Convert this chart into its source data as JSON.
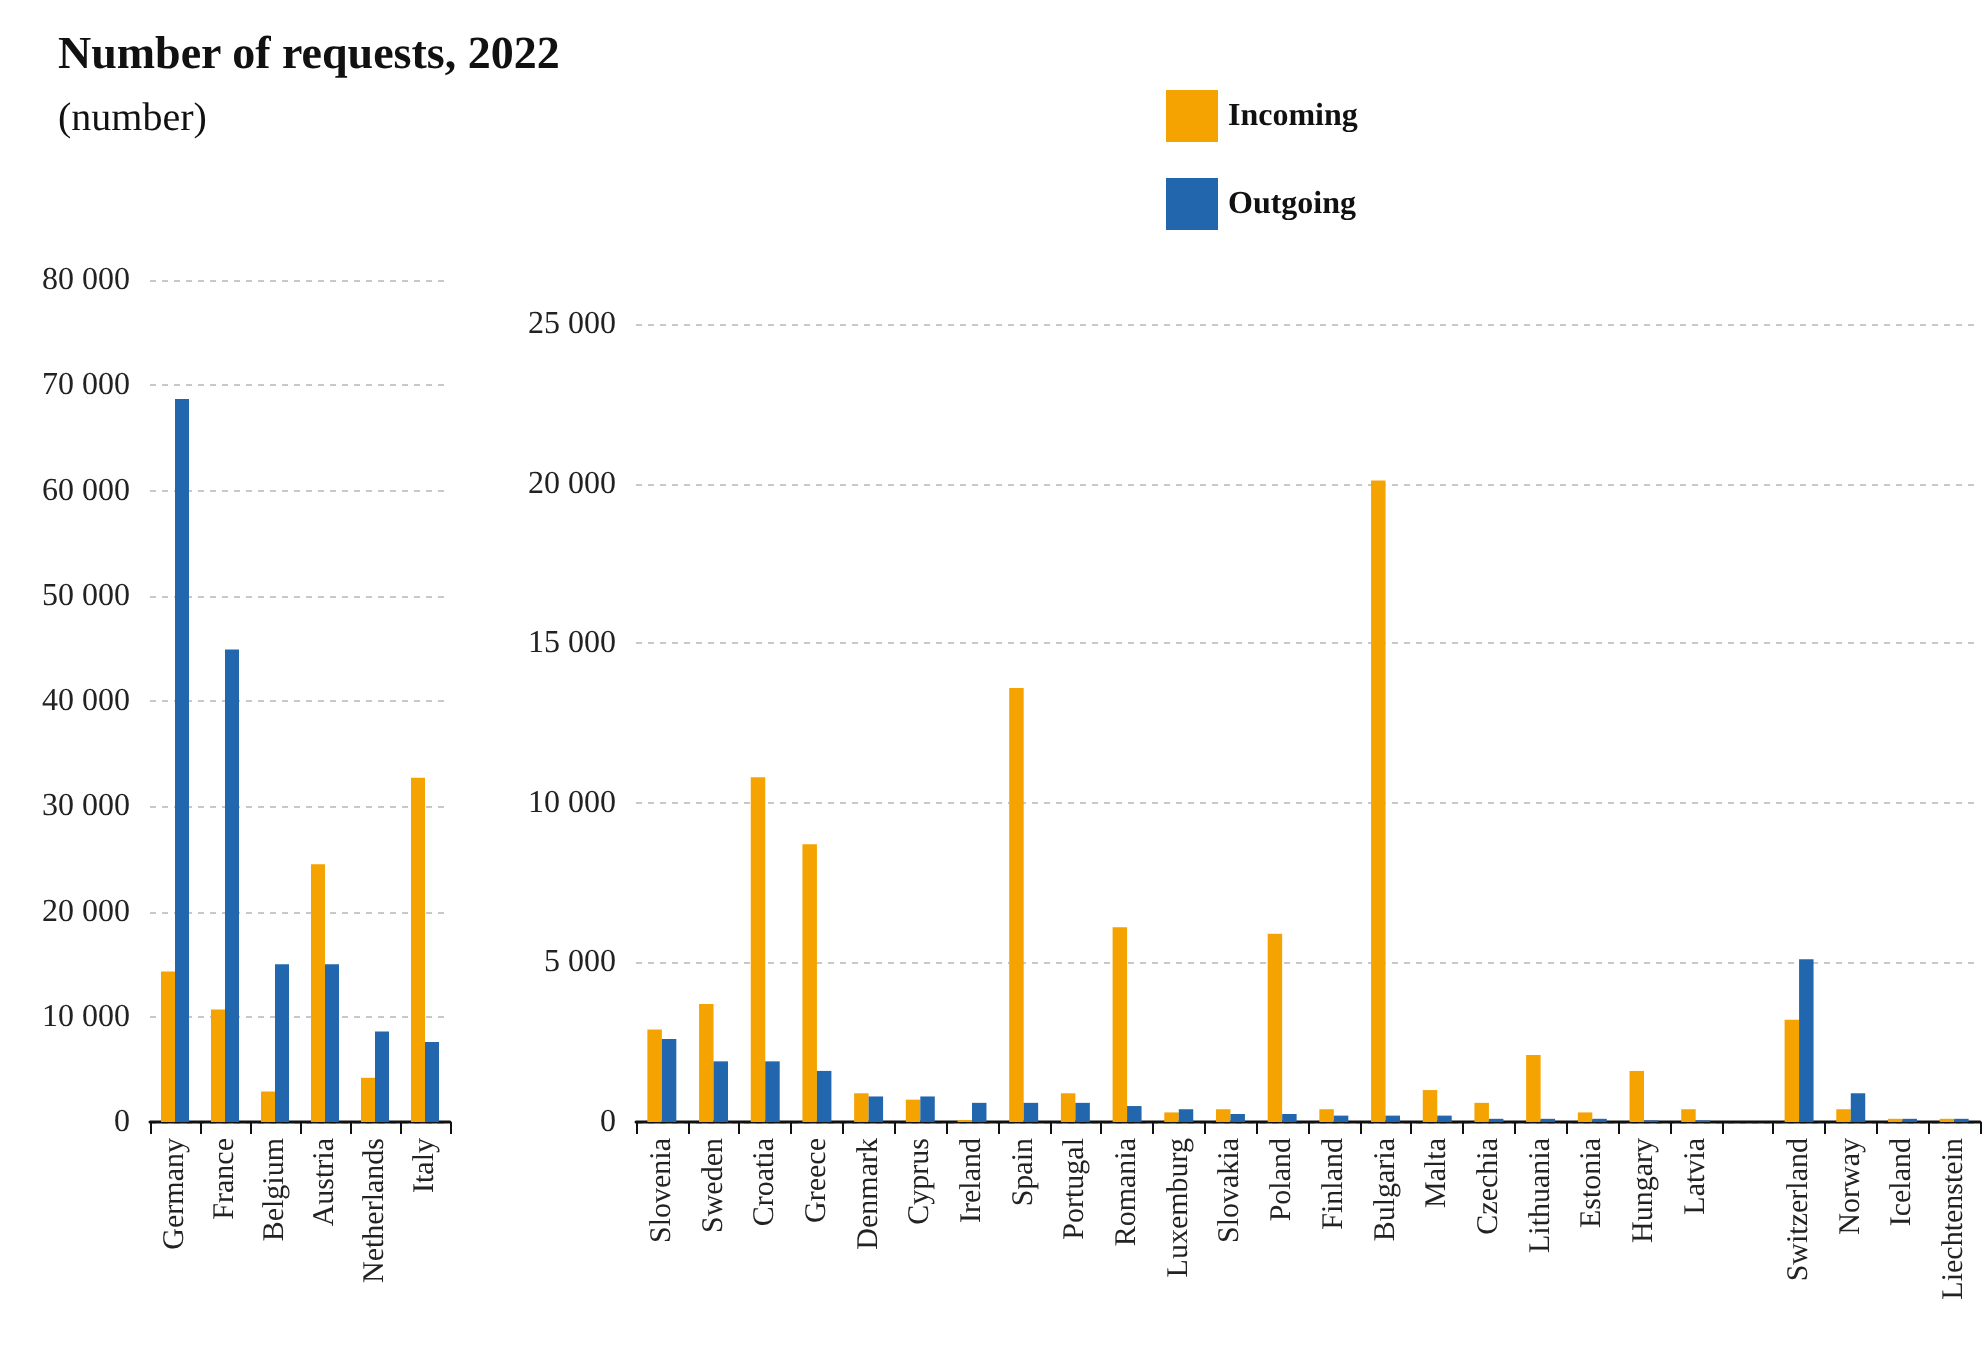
{
  "chart_data": [
    {
      "type": "bar",
      "title": "Number of requests, 2022",
      "subtitle": "(number)",
      "categories": [
        "Germany",
        "France",
        "Belgium",
        "Austria",
        "Netherlands",
        "Italy"
      ],
      "series": [
        {
          "name": "Incoming",
          "color": "#f5a300",
          "values": [
            14300,
            10700,
            2900,
            24500,
            4200,
            32700
          ]
        },
        {
          "name": "Outgoing",
          "color": "#2266ad",
          "values": [
            68700,
            44900,
            15000,
            15000,
            8600,
            7600
          ]
        }
      ],
      "ylim": [
        0,
        80000
      ],
      "yticks": [
        {
          "value": 0,
          "label": "0"
        },
        {
          "value": 10000,
          "label": "10 000"
        },
        {
          "value": 20000,
          "label": "20 000"
        },
        {
          "value": 30000,
          "label": "30 000"
        },
        {
          "value": 40000,
          "label": "40 000"
        },
        {
          "value": 50000,
          "label": "50 000"
        },
        {
          "value": 60000,
          "label": "60 000"
        },
        {
          "value": 70000,
          "label": "70 000"
        },
        {
          "value": 80000,
          "label": "80 000"
        }
      ],
      "grid": "y",
      "legend": "top"
    },
    {
      "type": "bar",
      "categories": [
        "Slovenia",
        "Sweden",
        "Croatia",
        "Greece",
        "Denmark",
        "Cyprus",
        "Ireland",
        "Spain",
        "Portugal",
        "Romania",
        "Luxemburg",
        "Slovakia",
        "Poland",
        "Finland",
        "Bulgaria",
        "Malta",
        "Czechia",
        "Lithuania",
        "Estonia",
        "Hungary",
        "Latvia",
        null,
        "Switzerland",
        "Norway",
        "Iceland",
        "Liechtenstein"
      ],
      "series": [
        {
          "color": "#f5a300",
          "values": [
            2900,
            3700,
            10800,
            8700,
            900,
            700,
            60,
            13600,
            900,
            6100,
            300,
            400,
            5900,
            400,
            20100,
            1000,
            600,
            2100,
            300,
            1600,
            400,
            null,
            3200,
            400,
            100,
            100
          ]
        },
        {
          "color": "#2266ad",
          "values": [
            2600,
            1900,
            1900,
            1600,
            800,
            800,
            600,
            600,
            600,
            500,
            400,
            250,
            250,
            200,
            200,
            200,
            100,
            100,
            100,
            50,
            50,
            null,
            5100,
            900,
            100,
            100
          ]
        }
      ],
      "ylim": [
        0,
        25000
      ],
      "yticks": [
        {
          "value": 0,
          "label": "0"
        },
        {
          "value": 5000,
          "label": "5 000"
        },
        {
          "value": 10000,
          "label": "10 000"
        },
        {
          "value": 15000,
          "label": "15 000"
        },
        {
          "value": 20000,
          "label": "20 000"
        },
        {
          "value": 25000,
          "label": "25 000"
        }
      ],
      "grid": "y"
    }
  ]
}
